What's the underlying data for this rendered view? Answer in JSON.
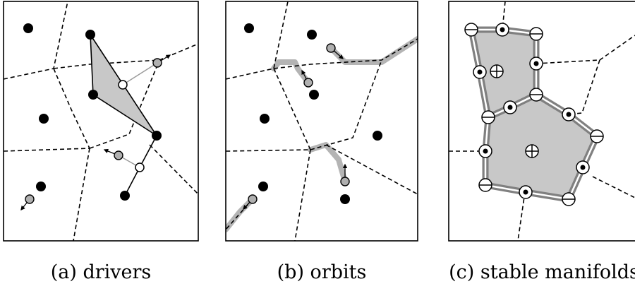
{
  "panels": [
    {
      "id": "a",
      "caption": "(a) drivers"
    },
    {
      "id": "b",
      "caption": "(b) orbits"
    },
    {
      "id": "c",
      "caption": "(c) stable manifolds"
    }
  ],
  "colors": {
    "site": "#000000",
    "driver": "#ffffff",
    "gray_point": "#b0b0b0",
    "hull_fill": "#c8c8c8",
    "orbit_path": "#b4b4b4",
    "manifold_fill": "#c8c8c8",
    "manifold_edge": "#808080"
  },
  "icons": [
    "arrow-head-icon",
    "plus-circle-icon",
    "minus-circle-icon",
    "dot-circle-icon"
  ]
}
